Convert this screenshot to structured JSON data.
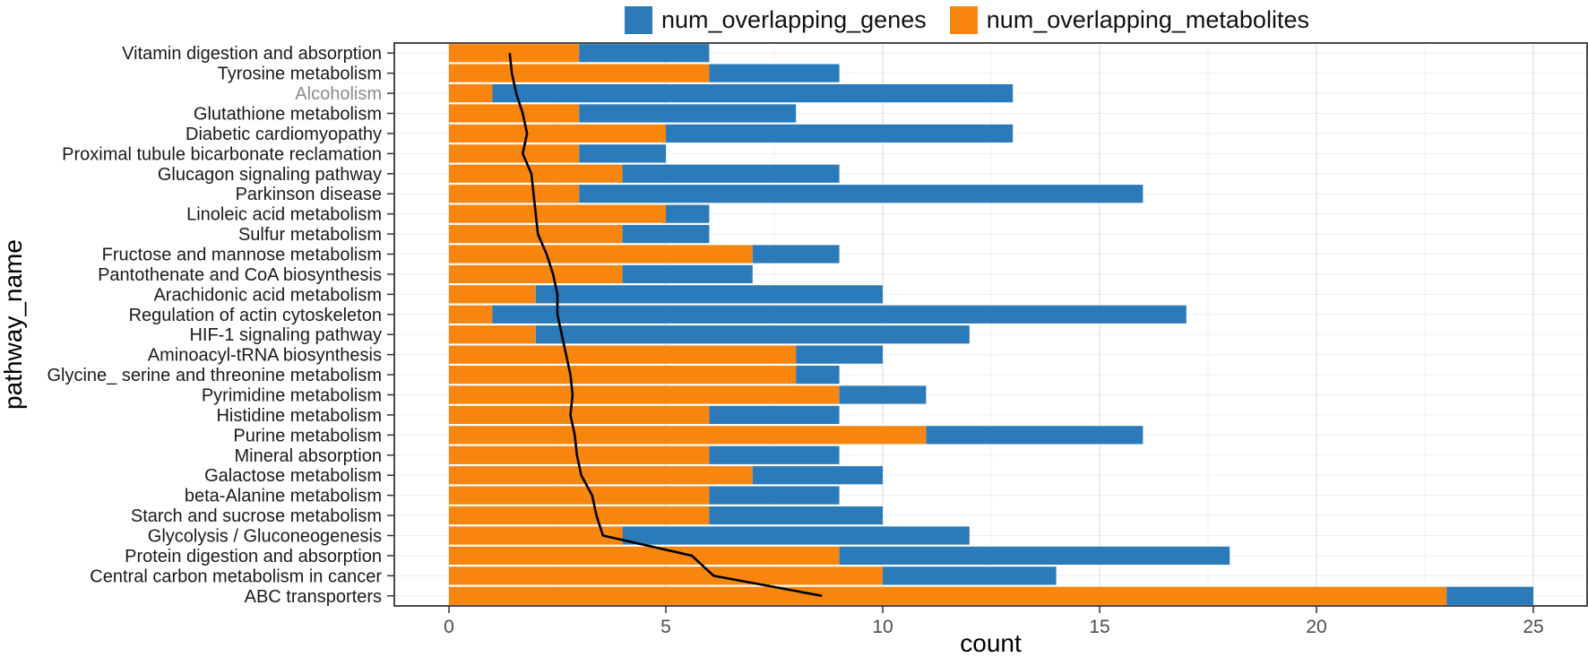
{
  "legend": {
    "items": [
      {
        "label": "num_overlapping_genes",
        "color": "#2b7bba"
      },
      {
        "label": "num_overlapping_metabolites",
        "color": "#f8860e"
      }
    ]
  },
  "chart_data": {
    "type": "bar",
    "orientation": "horizontal",
    "stacked": true,
    "title": "",
    "xlabel": "count",
    "ylabel": "pathway_name",
    "xlim": [
      0,
      25
    ],
    "x_major_ticks": [
      0,
      5,
      10,
      15,
      20,
      25
    ],
    "x_tick_labels": [
      "0",
      "5",
      "10",
      "15",
      "20",
      "25"
    ],
    "x_minor_ticks": [
      2.5,
      7.5,
      12.5,
      17.5,
      22.5
    ],
    "grid": "on",
    "legend_position": "top",
    "categories": [
      "Vitamin digestion and absorption",
      "Tyrosine metabolism",
      "Alcoholism",
      "Glutathione metabolism",
      "Diabetic cardiomyopathy",
      "Proximal tubule bicarbonate reclamation",
      "Glucagon signaling pathway",
      "Parkinson disease",
      "Linoleic acid metabolism",
      "Sulfur metabolism",
      "Fructose and mannose metabolism",
      "Pantothenate and CoA biosynthesis",
      "Arachidonic acid metabolism",
      "Regulation of actin cytoskeleton",
      "HIF-1 signaling pathway",
      "Aminoacyl-tRNA biosynthesis",
      "Glycine_ serine and threonine metabolism",
      "Pyrimidine metabolism",
      "Histidine metabolism",
      "Purine metabolism",
      "Mineral absorption",
      "Galactose metabolism",
      "beta-Alanine metabolism",
      "Starch and sucrose metabolism",
      "Glycolysis / Gluconeogenesis",
      "Protein digestion and absorption",
      "Central carbon metabolism in cancer",
      "ABC transporters"
    ],
    "series": [
      {
        "name": "num_overlapping_metabolites",
        "color": "#f8860e",
        "values": [
          3,
          6,
          1,
          3,
          5,
          3,
          4,
          3,
          5,
          4,
          7,
          4,
          2,
          1,
          2,
          8,
          8,
          9,
          6,
          11,
          6,
          7,
          6,
          6,
          4,
          9,
          10,
          23
        ]
      },
      {
        "name": "num_overlapping_genes",
        "color": "#2b7bba",
        "values": [
          3,
          3,
          12,
          5,
          8,
          2,
          5,
          13,
          1,
          2,
          2,
          3,
          8,
          16,
          10,
          2,
          1,
          2,
          3,
          5,
          3,
          3,
          3,
          4,
          8,
          9,
          4,
          2
        ]
      }
    ],
    "line_overlay": {
      "color": "#000000",
      "values": [
        1.4,
        1.45,
        1.55,
        1.7,
        1.8,
        1.7,
        1.9,
        1.95,
        2.0,
        2.05,
        2.25,
        2.4,
        2.5,
        2.5,
        2.6,
        2.7,
        2.8,
        2.85,
        2.8,
        2.9,
        2.95,
        3.05,
        3.3,
        3.4,
        3.55,
        5.6,
        6.1,
        8.6
      ]
    },
    "muted_category": {
      "name": "Alcoholism",
      "label_color": "#8c8c8c"
    },
    "style": {
      "category_label_color": "#1a1a1a",
      "tick_label_color": "#4d4d4d",
      "axis_title_color": "#000000",
      "panel_border_color": "#4a4a4a",
      "major_grid_color": "#e3e3e3",
      "minor_grid_color": "#f0f0f0",
      "row_grid_color": "#ededed",
      "tick_mark_color": "#333333",
      "panel_background": "#ffffff"
    }
  }
}
